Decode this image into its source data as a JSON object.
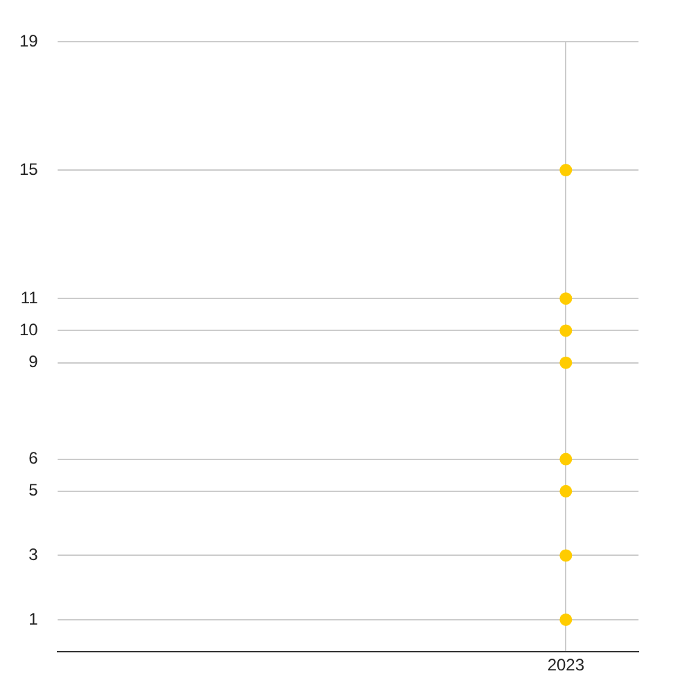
{
  "chart_data": {
    "type": "scatter",
    "categories": [
      null,
      null,
      null,
      "2023"
    ],
    "series": [
      {
        "color": "#ffcc00",
        "values": [
          null,
          null,
          null,
          15
        ]
      },
      {
        "color": "#ffcc00",
        "values": [
          null,
          null,
          null,
          11
        ]
      },
      {
        "color": "#ffcc00",
        "values": [
          null,
          null,
          null,
          10
        ]
      },
      {
        "color": "#ffcc00",
        "values": [
          null,
          null,
          null,
          9
        ]
      },
      {
        "color": "#ffcc00",
        "values": [
          null,
          null,
          null,
          6
        ]
      },
      {
        "color": "#ffcc00",
        "values": [
          null,
          null,
          null,
          5
        ]
      },
      {
        "color": "#ffcc00",
        "values": [
          null,
          null,
          null,
          3
        ]
      },
      {
        "color": "#ffcc00",
        "values": [
          null,
          null,
          null,
          1
        ]
      }
    ],
    "ylim": [
      0,
      19
    ],
    "yticks": [
      1,
      3,
      5,
      6,
      9,
      10,
      11,
      15,
      19
    ],
    "grid": true,
    "legend": false,
    "marker": "circle"
  }
}
